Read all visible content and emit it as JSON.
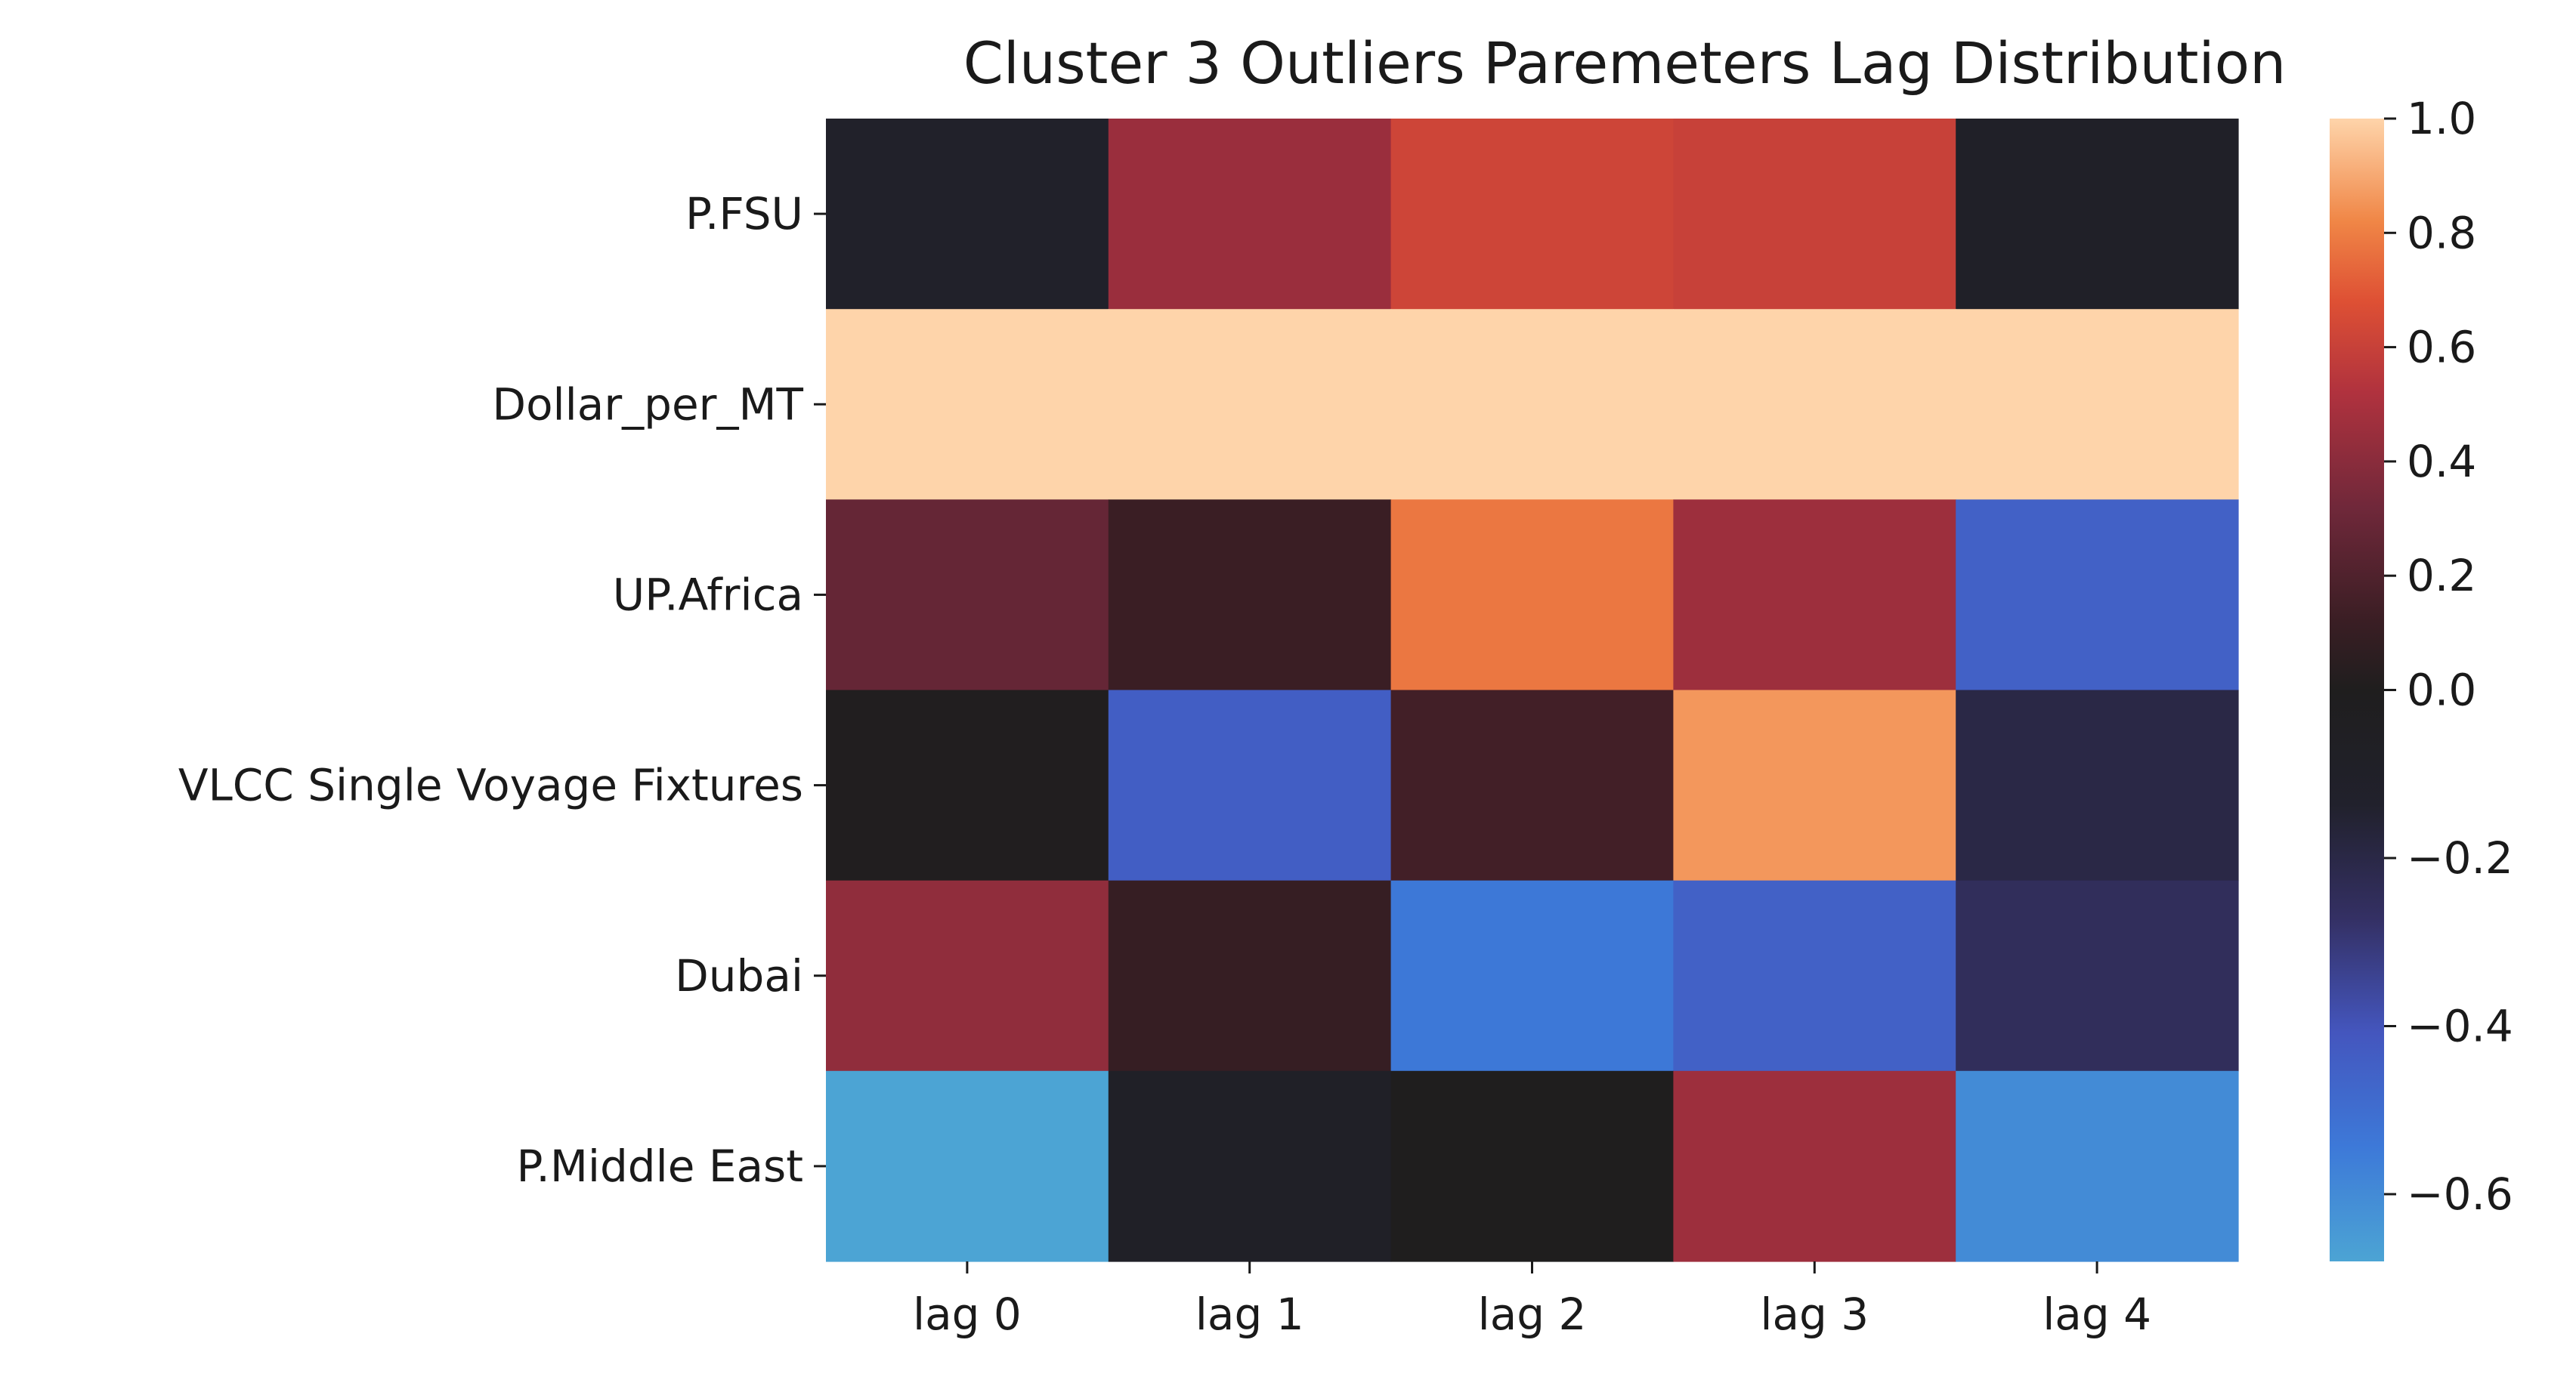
{
  "chart_data": {
    "type": "heatmap",
    "title": "Cluster 3 Outliers Paremeters Lag Distribution",
    "xlabel": "",
    "ylabel": "",
    "x_categories": [
      "lag 0",
      "lag 1",
      "lag 2",
      "lag 3",
      "lag 4"
    ],
    "y_categories": [
      "P.FSU",
      "Dollar_per_MT",
      "UP.Africa",
      "VLCC Single Voyage Fixtures",
      "Dubai",
      "P.Middle East"
    ],
    "values": [
      [
        -0.12,
        0.45,
        0.62,
        0.6,
        -0.1
      ],
      [
        1.0,
        1.0,
        1.0,
        1.0,
        1.0
      ],
      [
        0.28,
        0.12,
        0.78,
        0.46,
        -0.45
      ],
      [
        0.01,
        -0.44,
        0.15,
        0.86,
        -0.2
      ],
      [
        0.42,
        0.1,
        -0.54,
        -0.45,
        -0.25
      ],
      [
        -0.68,
        -0.09,
        0.0,
        0.46,
        -0.6
      ]
    ],
    "colorbar": {
      "vmin": -0.68,
      "vmax": 1.0,
      "ticks": [
        1.0,
        0.8,
        0.6,
        0.4,
        0.2,
        0.0,
        -0.2,
        -0.4,
        -0.6
      ],
      "tick_labels": [
        "1.0",
        "0.8",
        "0.6",
        "0.4",
        "0.2",
        "0.0",
        "−0.2",
        "−0.4",
        "−0.6"
      ],
      "colormap": "icefire"
    },
    "grid": false,
    "legend": "colorbar-right"
  }
}
